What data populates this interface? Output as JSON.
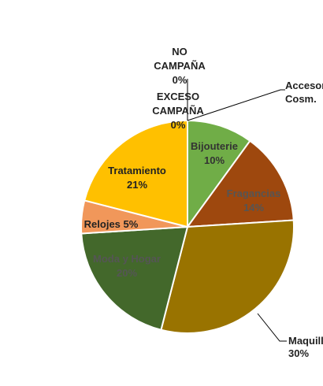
{
  "chart_data": {
    "type": "pie",
    "title": "",
    "start_angle_deg": 0,
    "direction": "clockwise",
    "slices": [
      {
        "label": "Bijouterie",
        "value": 10,
        "pct_text": "10%",
        "color": "#70ad47",
        "label_color": "#333333"
      },
      {
        "label": "Fragancias",
        "value": 14,
        "pct_text": "14%",
        "color": "#9e480e",
        "label_color": "#555555"
      },
      {
        "label": "Maquill",
        "value": 30,
        "pct_text": "30%",
        "color": "#997300",
        "label_color": "#222222"
      },
      {
        "label": "Moda y Hogar",
        "value": 20,
        "pct_text": "20%",
        "color": "#43682b",
        "label_color": "#555555"
      },
      {
        "label": "Relojes",
        "value": 5,
        "pct_text": "5%",
        "color": "#f1975a",
        "label_color": "#222222"
      },
      {
        "label": "Tratamiento",
        "value": 21,
        "pct_text": "21%",
        "color": "#ffc000",
        "label_color": "#222222"
      },
      {
        "label": "Accesor Cosm.",
        "value": 0,
        "pct_text": "",
        "color": "#5b9bd5",
        "label_color": "#222222"
      },
      {
        "label": "NO CAMPAÑA",
        "value": 0,
        "pct_text": "0%",
        "color": "#a5a5a5",
        "label_color": "#222222"
      },
      {
        "label": "EXCESO CAMPAÑA",
        "value": 0,
        "pct_text": "0%",
        "color": "#264478",
        "label_color": "#222222"
      }
    ]
  },
  "labels": {
    "bijouterie": [
      "Bijouterie",
      "10%"
    ],
    "fragancias": [
      "Fragancias",
      "14%"
    ],
    "maquill": [
      "Maquill",
      "30%"
    ],
    "moda": [
      "Moda y Hogar",
      "20%"
    ],
    "relojes": [
      "Relojes 5%"
    ],
    "tratamiento": [
      "Tratamiento",
      "21%"
    ],
    "accesor": [
      "Accesor",
      "Cosm."
    ],
    "no_campana": [
      "NO",
      "CAMPAÑA",
      "0%"
    ],
    "exceso": [
      "EXCESO",
      "CAMPAÑA",
      "0%"
    ]
  }
}
